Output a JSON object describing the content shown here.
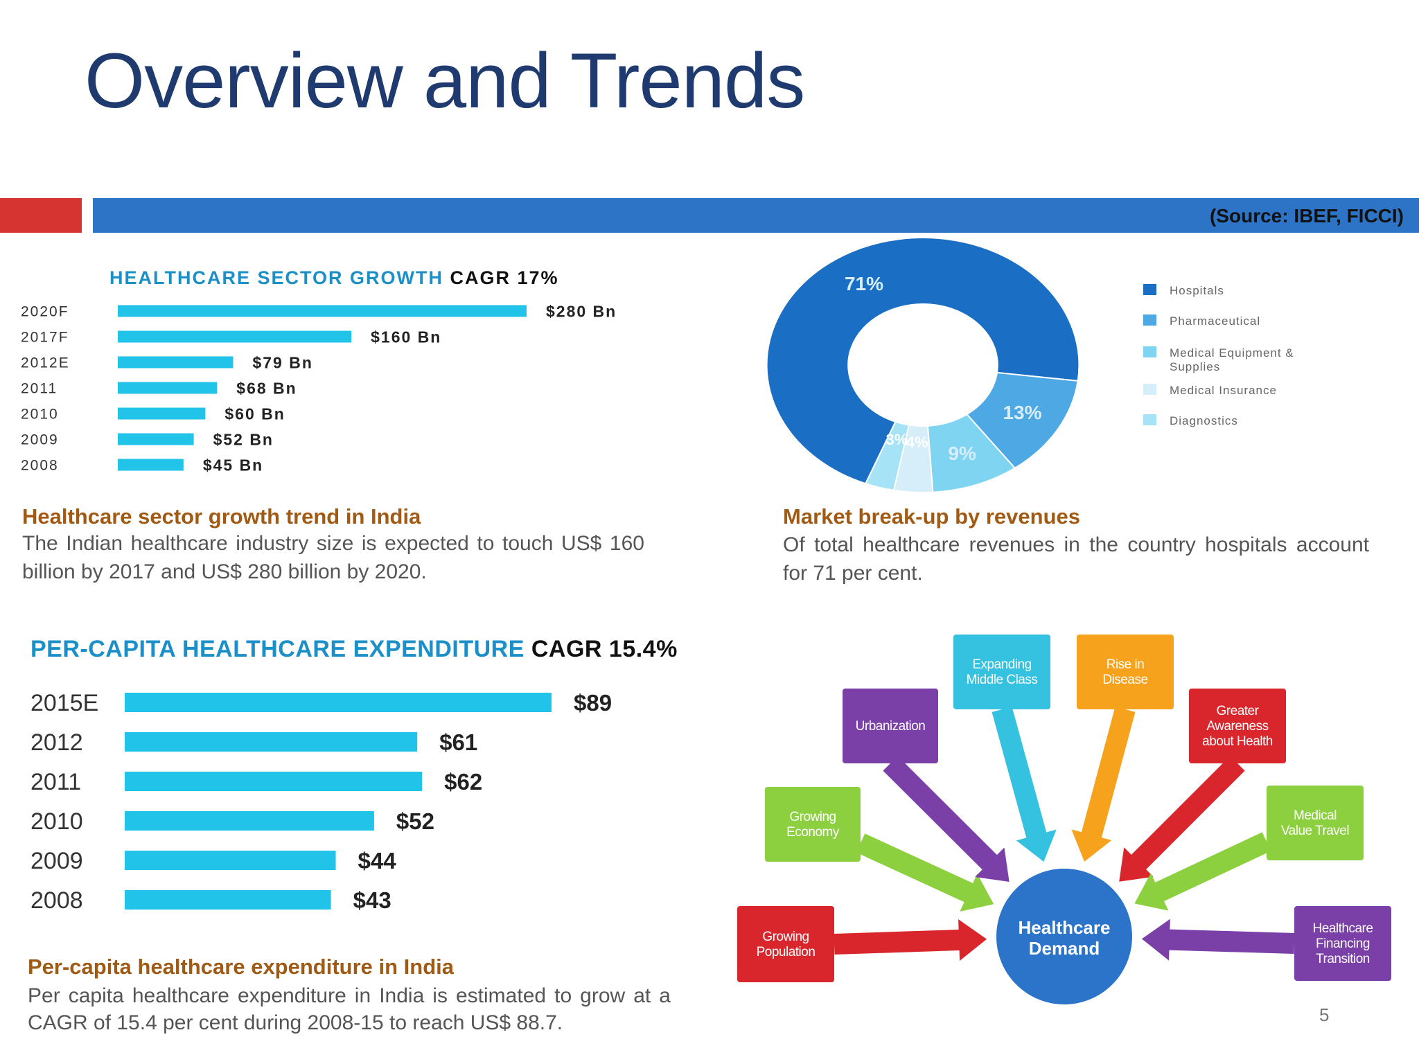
{
  "slide": {
    "title": "Overview and Trends",
    "source": "(Source: IBEF, FICCI)",
    "page_number": "5"
  },
  "colors": {
    "title": "#1f3a6e",
    "red_band": "#d63430",
    "blue_band": "#2e74c6",
    "bar": "#21c3e8",
    "heading_blue": "#1b8fc7",
    "caption_title": "#a05a14"
  },
  "growth": {
    "heading": "HEALTHCARE SECTOR GROWTH",
    "cagr": "CAGR 17%",
    "caption_title": "Healthcare sector growth trend in India",
    "caption_text": "The Indian healthcare industry size is expected to touch US$ 160 billion by 2017 and US$ 280 billion by 2020."
  },
  "market": {
    "caption_title": "Market break-up by revenues",
    "caption_text": "Of total healthcare revenues in the country hospitals account for 71 per cent."
  },
  "percapita": {
    "heading": "PER-CAPITA HEALTHCARE EXPENDITURE",
    "cagr": "CAGR 15.4%",
    "caption_title": "Per-capita healthcare expenditure in India",
    "caption_text": "Per capita healthcare expenditure in India is estimated to grow at a CAGR of 15.4 per cent during 2008-15 to reach US$ 88.7."
  },
  "demand": {
    "center": [
      "Healthcare",
      "Demand"
    ],
    "drivers": [
      {
        "lines": [
          "Growing",
          "Population"
        ],
        "color": "#d9262c"
      },
      {
        "lines": [
          "Growing",
          "Economy"
        ],
        "color": "#8ccf3f"
      },
      {
        "lines": [
          "Urbanization"
        ],
        "color": "#7b3fa8"
      },
      {
        "lines": [
          "Expanding",
          "Middle Class"
        ],
        "color": "#35c2e0"
      },
      {
        "lines": [
          "Rise in",
          "Disease"
        ],
        "color": "#f6a21c"
      },
      {
        "lines": [
          "Greater",
          "Awareness",
          "about Health"
        ],
        "color": "#d9262c"
      },
      {
        "lines": [
          "Medical",
          "Value Travel"
        ],
        "color": "#8ccf3f"
      },
      {
        "lines": [
          "Healthcare",
          "Financing",
          "Transition"
        ],
        "color": "#7b3fa8"
      }
    ]
  },
  "chart_data": [
    {
      "type": "bar",
      "orientation": "horizontal",
      "title": "HEALTHCARE SECTOR GROWTH CAGR 17%",
      "categories": [
        "2020F",
        "2017F",
        "2012E",
        "2011",
        "2010",
        "2009",
        "2008"
      ],
      "values": [
        280,
        160,
        79,
        68,
        60,
        52,
        45
      ],
      "labels": [
        "$280 Bn",
        "$160 Bn",
        "$79 Bn",
        "$68 Bn",
        "$60 Bn",
        "$52 Bn",
        "$45 Bn"
      ]
    },
    {
      "type": "pie",
      "categories": [
        "Hospitals",
        "Pharmaceutical",
        "Medical Equipment & Supplies",
        "Medical Insurance",
        "Diagnostics"
      ],
      "values": [
        71,
        13,
        9,
        4,
        3
      ],
      "labels": [
        "71%",
        "13%",
        "9%",
        "4%",
        "3%"
      ],
      "colors": [
        "#1a6fc4",
        "#4ea8e4",
        "#7fd4f2",
        "#d5eef9",
        "#a6e3f6"
      ],
      "legend_position": "right"
    },
    {
      "type": "bar",
      "orientation": "horizontal",
      "title": "PER-CAPITA HEALTHCARE EXPENDITURE CAGR 15.4%",
      "categories": [
        "2015E",
        "2012",
        "2011",
        "2010",
        "2009",
        "2008"
      ],
      "values": [
        89,
        61,
        62,
        52,
        44,
        43
      ],
      "labels": [
        "$89",
        "$61",
        "$62",
        "$52",
        "$44",
        "$43"
      ]
    }
  ]
}
